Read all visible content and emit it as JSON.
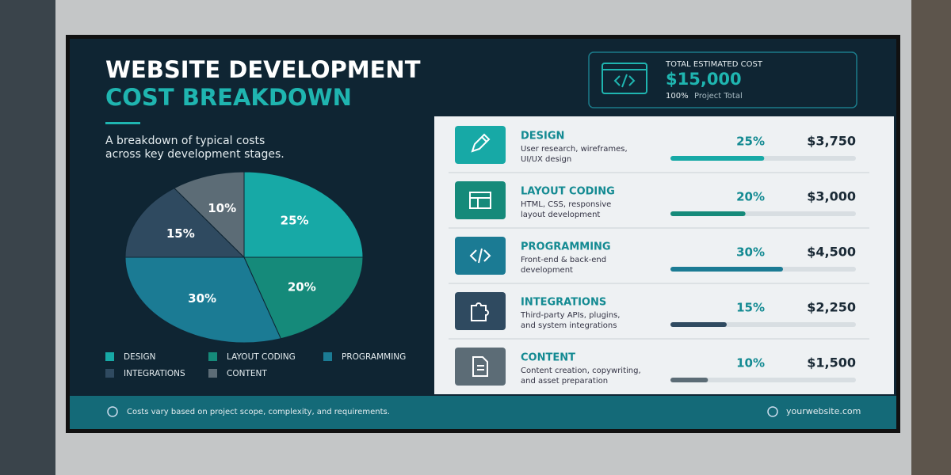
{
  "header": {
    "title": [
      "WEBSITE DEVELOPMENT",
      "COST BREAKDOWN"
    ],
    "subtitle": [
      "A breakdown of typical costs",
      "across key development stages."
    ]
  },
  "total": {
    "label": "TOTAL ESTIMATED COST",
    "amount": "$15,000",
    "percent": "100%",
    "note": "Project Total"
  },
  "chart_data": {
    "type": "pie",
    "categories": [
      "DESIGN",
      "LAYOUT CODING",
      "PROGRAMMING",
      "INTEGRATIONS",
      "CONTENT"
    ],
    "values": [
      25,
      20,
      30,
      15,
      10
    ],
    "value_labels": [
      "25%",
      "20%",
      "30%",
      "15%",
      "10%"
    ],
    "colors": [
      "#17a9a6",
      "#158a7a",
      "#1b7b94",
      "#2f4a60",
      "#5c6c76"
    ]
  },
  "rows": [
    {
      "title": "DESIGN",
      "description": [
        "User research, wireframes,",
        "UI/UX design"
      ],
      "amount": "$3,750"
    },
    {
      "title": "LAYOUT CODING",
      "description": [
        "HTML, CSS, responsive",
        "layout development"
      ],
      "amount": "$3,000"
    },
    {
      "title": "PROGRAMMING",
      "description": [
        "Front-end & back-end",
        "development"
      ],
      "amount": "$4,500"
    },
    {
      "title": "INTEGRATIONS",
      "description": [
        "Third-party APIs, plugins,",
        "and system integrations"
      ],
      "amount": "$2,250"
    },
    {
      "title": "CONTENT",
      "description": [
        "Content creation, copywriting,",
        "and asset preparation"
      ],
      "amount": "$1,500"
    }
  ],
  "footer": {
    "note": "Costs vary based on project scope, complexity, and requirements.",
    "site": "yourwebsite.com"
  }
}
